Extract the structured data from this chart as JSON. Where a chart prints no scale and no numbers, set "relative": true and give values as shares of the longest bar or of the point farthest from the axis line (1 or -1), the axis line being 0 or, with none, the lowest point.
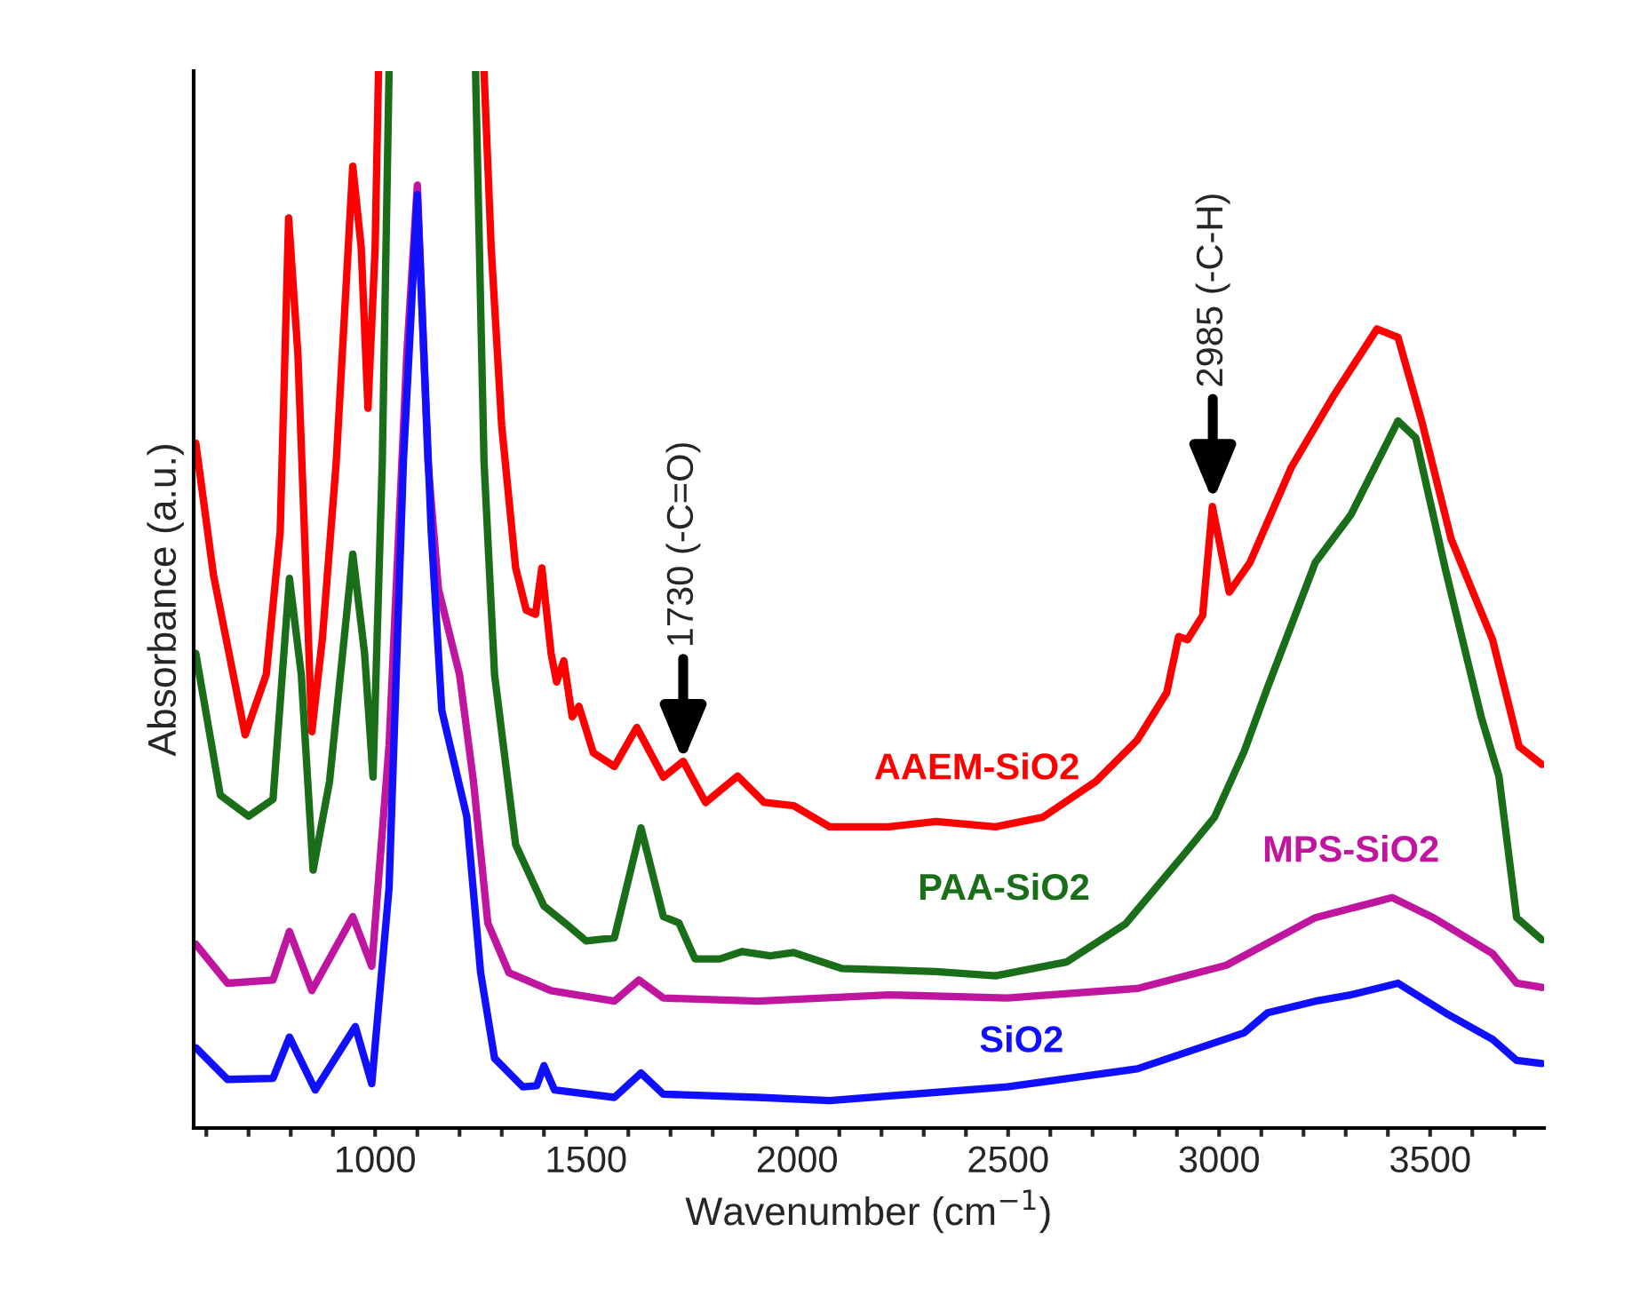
{
  "chart_data": {
    "type": "line",
    "relative": true,
    "xlabel": "Wavenumber (cm$^{−1}$)",
    "ylabel": "Absorbance (a.u.)",
    "xlim": [
      570,
      3770
    ],
    "xticks": [
      {
        "value": 600,
        "label": null
      },
      {
        "value": 700,
        "label": null
      },
      {
        "value": 800,
        "label": null
      },
      {
        "value": 900,
        "label": null
      },
      1000,
      {
        "value": 1100,
        "label": null
      },
      {
        "value": 1200,
        "label": null
      },
      {
        "value": 1300,
        "label": null
      },
      {
        "value": 1400,
        "label": null
      },
      1500,
      {
        "value": 1600,
        "label": null
      },
      {
        "value": 1700,
        "label": null
      },
      {
        "value": 1800,
        "label": null
      },
      {
        "value": 1900,
        "label": null
      },
      2000,
      {
        "value": 2100,
        "label": null
      },
      {
        "value": 2200,
        "label": null
      },
      {
        "value": 2300,
        "label": null
      },
      {
        "value": 2400,
        "label": null
      },
      2500,
      {
        "value": 2600,
        "label": null
      },
      {
        "value": 2700,
        "label": null
      },
      {
        "value": 2800,
        "label": null
      },
      {
        "value": 2900,
        "label": null
      },
      3000,
      {
        "value": 3100,
        "label": null
      },
      {
        "value": 3200,
        "label": null
      },
      {
        "value": 3300,
        "label": null
      },
      {
        "value": 3400,
        "label": null
      },
      3500,
      {
        "value": 3600,
        "label": null
      },
      {
        "value": 3700,
        "label": null
      }
    ],
    "grid": false,
    "legend": false,
    "tick_labels": "x",
    "line_style": "solid",
    "marker": "none",
    "series": [
      {
        "name": "AAEM-SiO2",
        "color": "#ff0000",
        "x": [
          575,
          617,
          692,
          742,
          775,
          795,
          817,
          850,
          875,
          908,
          947,
          967,
          983,
          1000,
          1008,
          1100,
          1258,
          1275,
          1300,
          1333,
          1358,
          1380,
          1395,
          1417,
          1430,
          1447,
          1467,
          1483,
          1517,
          1567,
          1620,
          1683,
          1730,
          1783,
          1859,
          1922,
          1992,
          2077,
          2217,
          2329,
          2470,
          2582,
          2708,
          2806,
          2876,
          2904,
          2925,
          2961,
          2984,
          3024,
          3073,
          3171,
          3270,
          3374,
          3424,
          3480,
          3550,
          3648,
          3711,
          3765
        ],
        "values": [
          0.648,
          0.523,
          0.372,
          0.429,
          0.564,
          0.861,
          0.732,
          0.375,
          0.463,
          0.631,
          0.91,
          0.833,
          0.681,
          0.833,
          1.0,
          null,
          1.0,
          0.833,
          0.664,
          0.53,
          0.49,
          0.486,
          0.53,
          0.449,
          0.422,
          0.442,
          0.389,
          0.399,
          0.355,
          0.342,
          0.379,
          0.332,
          0.347,
          0.308,
          0.333,
          0.308,
          0.305,
          0.285,
          0.285,
          0.29,
          0.285,
          0.294,
          0.328,
          0.367,
          0.412,
          0.465,
          0.462,
          0.485,
          0.588,
          0.507,
          0.535,
          0.625,
          0.692,
          0.756,
          0.748,
          0.669,
          0.557,
          0.462,
          0.361,
          0.344
        ]
      },
      {
        "name": "PAA-SiO2",
        "color": "#1a6e1a",
        "x": [
          575,
          633,
          700,
          758,
          797,
          825,
          853,
          892,
          947,
          975,
          995,
          1017,
          1033,
          1100,
          1238,
          1258,
          1283,
          1333,
          1400,
          1450,
          1500,
          1567,
          1630,
          1683,
          1720,
          1758,
          1817,
          1870,
          1936,
          1992,
          2105,
          2329,
          2470,
          2638,
          2778,
          2919,
          2989,
          3059,
          3115,
          3228,
          3312,
          3424,
          3466,
          3536,
          3621,
          3663,
          3705,
          3765
        ],
        "values": [
          0.449,
          0.315,
          0.295,
          0.311,
          0.52,
          0.429,
          0.244,
          0.328,
          0.543,
          0.449,
          0.332,
          0.631,
          1.0,
          null,
          1.0,
          0.631,
          0.429,
          0.268,
          0.21,
          0.194,
          0.177,
          0.18,
          0.284,
          0.2,
          0.194,
          0.16,
          0.16,
          0.167,
          0.163,
          0.166,
          0.151,
          0.148,
          0.144,
          0.157,
          0.193,
          0.26,
          0.294,
          0.356,
          0.417,
          0.535,
          0.58,
          0.669,
          0.653,
          0.529,
          0.389,
          0.333,
          0.199,
          0.178
        ]
      },
      {
        "name": "MPS-SiO2",
        "color": "#c0169f",
        "x": [
          575,
          650,
          758,
          797,
          850,
          947,
          992,
          1033,
          1075,
          1100,
          1125,
          1150,
          1200,
          1233,
          1267,
          1317,
          1417,
          1567,
          1625,
          1683,
          1907,
          2217,
          2498,
          2806,
          3017,
          3228,
          3410,
          3508,
          3648,
          3705,
          3765
        ],
        "values": [
          0.174,
          0.137,
          0.14,
          0.186,
          0.13,
          0.2,
          0.153,
          0.362,
          0.732,
          0.892,
          0.631,
          0.51,
          0.429,
          0.328,
          0.194,
          0.147,
          0.13,
          0.12,
          0.14,
          0.123,
          0.12,
          0.126,
          0.123,
          0.132,
          0.154,
          0.199,
          0.218,
          0.199,
          0.165,
          0.137,
          0.133
        ]
      },
      {
        "name": "SiO2",
        "color": "#1010ff",
        "x": [
          575,
          650,
          758,
          797,
          858,
          953,
          992,
          1033,
          1067,
          1100,
          1133,
          1158,
          1217,
          1250,
          1283,
          1350,
          1383,
          1400,
          1425,
          1567,
          1630,
          1683,
          1907,
          2077,
          2498,
          2806,
          3059,
          3115,
          3228,
          3312,
          3424,
          3536,
          3648,
          3705,
          3765
        ],
        "values": [
          0.076,
          0.046,
          0.047,
          0.086,
          0.036,
          0.096,
          0.042,
          0.227,
          0.631,
          0.883,
          0.564,
          0.395,
          0.295,
          0.147,
          0.066,
          0.039,
          0.04,
          0.059,
          0.036,
          0.029,
          0.052,
          0.032,
          0.029,
          0.026,
          0.039,
          0.056,
          0.09,
          0.109,
          0.12,
          0.126,
          0.137,
          0.109,
          0.084,
          0.064,
          0.061
        ]
      }
    ],
    "annotations": [
      {
        "text": "1730 (-C=O)",
        "x": 1730,
        "y": 0.347
      },
      {
        "text": "2985 (-C-H)",
        "x": 2985,
        "y": 0.593
      }
    ]
  }
}
